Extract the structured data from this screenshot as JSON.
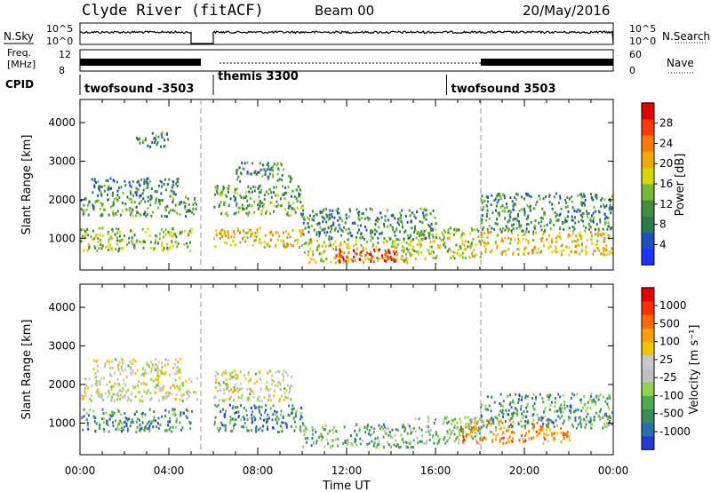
{
  "header": {
    "station": "Clyde River (fitACF)",
    "beam": "Beam 00",
    "date": "20/May/2016"
  },
  "strips": {
    "nsky_label": "N.Sky",
    "nsearch_label": "N.Search",
    "count_ticks": [
      "10^5",
      "10^0"
    ],
    "freq_label_line1": "Freq.",
    "freq_label_line2": "[MHz]",
    "freq_ticks": [
      "12",
      "8"
    ],
    "nave_ticks": [
      "60",
      "0"
    ],
    "nave_label": "Nave",
    "cpid_label": "CPID",
    "cpid_segments": [
      {
        "label": "twofsound -3503",
        "start_h": 0.0,
        "end_h": 5.0
      },
      {
        "label": "themis 3300",
        "start_h": 6.0,
        "end_h": 16.5
      },
      {
        "label": "twofsound 3503",
        "start_h": 16.5,
        "end_h": 24.0
      }
    ]
  },
  "chart_data": [
    {
      "type": "heatmap",
      "name": "power-panel",
      "ylabel": "Slant Range [km]",
      "xlabel": "Time UT",
      "x_ticks": [
        "00:00",
        "04:00",
        "08:00",
        "12:00",
        "16:00",
        "20:00",
        "00:00"
      ],
      "xlim_hours": [
        0,
        24
      ],
      "y_ticks": [
        "1000",
        "2000",
        "3000",
        "4000"
      ],
      "ylim_km": [
        180,
        4600
      ],
      "colorbar": {
        "label": "Power [dB]",
        "tick_labels": [
          "4",
          "8",
          "12",
          "16",
          "20",
          "24",
          "28"
        ],
        "range": [
          0,
          30
        ]
      },
      "scatter_bands": [
        {
          "t0": 0.0,
          "t1": 5.3,
          "r0": 1600,
          "r1": 2100,
          "level": 0.35
        },
        {
          "t0": 0.5,
          "t1": 4.5,
          "r0": 2100,
          "r1": 2600,
          "level": 0.25
        },
        {
          "t0": 0.0,
          "t1": 5.0,
          "r0": 700,
          "r1": 1300,
          "level": 0.45
        },
        {
          "t0": 2.5,
          "t1": 4.0,
          "r0": 3400,
          "r1": 3800,
          "level": 0.25
        },
        {
          "t0": 6.0,
          "t1": 10.0,
          "r0": 800,
          "r1": 1300,
          "level": 0.6
        },
        {
          "t0": 6.0,
          "t1": 10.0,
          "r0": 1600,
          "r1": 2400,
          "level": 0.35
        },
        {
          "t0": 7.0,
          "t1": 9.5,
          "r0": 2500,
          "r1": 3000,
          "level": 0.3
        },
        {
          "t0": 10.0,
          "t1": 15.0,
          "r0": 400,
          "r1": 1000,
          "level": 0.55
        },
        {
          "t0": 11.5,
          "t1": 14.2,
          "r0": 400,
          "r1": 750,
          "level": 0.95
        },
        {
          "t0": 10.0,
          "t1": 16.0,
          "r0": 1000,
          "r1": 1800,
          "level": 0.3
        },
        {
          "t0": 15.0,
          "t1": 18.0,
          "r0": 500,
          "r1": 1300,
          "level": 0.5
        },
        {
          "t0": 18.0,
          "t1": 24.0,
          "r0": 600,
          "r1": 1200,
          "level": 0.6
        },
        {
          "t0": 18.0,
          "t1": 24.0,
          "r0": 1200,
          "r1": 2200,
          "level": 0.3
        }
      ]
    },
    {
      "type": "heatmap",
      "name": "velocity-panel",
      "ylabel": "Slant Range [km]",
      "xlabel": "Time UT",
      "x_ticks": [
        "00:00",
        "04:00",
        "08:00",
        "12:00",
        "16:00",
        "20:00",
        "00:00"
      ],
      "xlim_hours": [
        0,
        24
      ],
      "y_ticks": [
        "1000",
        "2000",
        "3000",
        "4000"
      ],
      "ylim_km": [
        180,
        4600
      ],
      "colorbar": {
        "label": "Velocity [m s⁻¹]",
        "tick_labels": [
          "1000",
          "500",
          "100",
          "25",
          "-25",
          "-100",
          "-500",
          "-1000"
        ],
        "range": [
          -1000,
          1000
        ]
      },
      "scatter_bands": [
        {
          "t0": 0.0,
          "t1": 5.3,
          "r0": 1600,
          "r1": 2200,
          "level": 0.5
        },
        {
          "t0": 0.0,
          "t1": 5.0,
          "r0": 800,
          "r1": 1400,
          "level": 0.2
        },
        {
          "t0": 0.5,
          "t1": 4.5,
          "r0": 2200,
          "r1": 2700,
          "level": 0.5
        },
        {
          "t0": 6.0,
          "t1": 10.0,
          "r0": 800,
          "r1": 1500,
          "level": 0.2
        },
        {
          "t0": 6.0,
          "t1": 9.5,
          "r0": 1600,
          "r1": 2400,
          "level": 0.5
        },
        {
          "t0": 10.0,
          "t1": 15.0,
          "r0": 400,
          "r1": 1000,
          "level": 0.3
        },
        {
          "t0": 15.0,
          "t1": 18.0,
          "r0": 500,
          "r1": 1200,
          "level": 0.35
        },
        {
          "t0": 17.0,
          "t1": 22.0,
          "r0": 500,
          "r1": 1100,
          "level": 0.7
        },
        {
          "t0": 18.0,
          "t1": 24.0,
          "r0": 900,
          "r1": 1800,
          "level": 0.25
        }
      ]
    }
  ]
}
